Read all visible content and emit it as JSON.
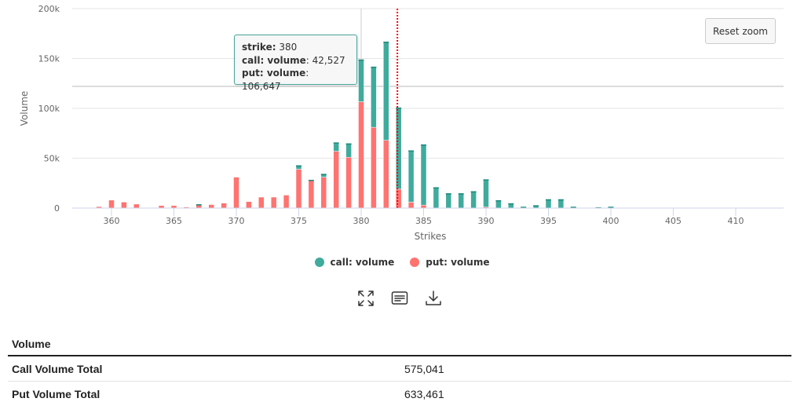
{
  "chart_data": {
    "type": "bar",
    "stacked": true,
    "title": "",
    "xlabel": "Strikes",
    "ylabel": "Volume",
    "xlim": [
      358,
      413
    ],
    "ylim": [
      0,
      200000
    ],
    "x_ticks": [
      "360",
      "365",
      "370",
      "375",
      "380",
      "385",
      "390",
      "395",
      "400",
      "405",
      "410"
    ],
    "x_tick_values": [
      360,
      365,
      370,
      375,
      380,
      385,
      390,
      395,
      400,
      405,
      410
    ],
    "y_ticks": [
      "0",
      "50k",
      "100k",
      "150k",
      "200k"
    ],
    "y_tick_values": [
      0,
      50000,
      100000,
      150000,
      200000
    ],
    "grid": true,
    "legend_position": "bottom-center",
    "x": [
      359,
      360,
      361,
      362,
      364,
      365,
      366,
      367,
      368,
      369,
      370,
      371,
      372,
      373,
      374,
      375,
      376,
      377,
      378,
      379,
      380,
      381,
      382,
      383,
      384,
      385,
      386,
      387,
      388,
      389,
      390,
      391,
      392,
      393,
      394,
      395,
      396,
      397,
      399,
      400
    ],
    "series": [
      {
        "name": "put: volume",
        "color": "#ff7370",
        "values": [
          1500,
          8000,
          6000,
          4000,
          2500,
          2500,
          1000,
          3000,
          3500,
          5000,
          31000,
          6500,
          11000,
          11000,
          13000,
          39000,
          28000,
          31000,
          57000,
          51000,
          106647,
          81000,
          68000,
          19000,
          6000,
          3000,
          0,
          0,
          0,
          0,
          1000,
          0,
          0,
          0,
          0,
          0,
          0,
          0,
          0,
          0
        ]
      },
      {
        "name": "call: volume",
        "color": "#3fab9d",
        "values": [
          0,
          0,
          0,
          0,
          0,
          0,
          0,
          1000,
          0,
          0,
          0,
          0,
          0,
          0,
          0,
          4000,
          500,
          3500,
          9000,
          14000,
          42527,
          61000,
          99000,
          82000,
          52000,
          61000,
          21000,
          15000,
          15000,
          17000,
          28000,
          8000,
          5000,
          1500,
          3000,
          9000,
          9000,
          1500,
          1000,
          1500
        ]
      }
    ],
    "reference_lines": {
      "current_price_strike": 382.9,
      "horizontal_line_value": 122000,
      "crosshair_strike": 380
    },
    "tooltip": {
      "strike_label": "strike:",
      "strike_value": "380",
      "call_label": "call: volume",
      "call_value": ": 42,527",
      "put_label": "put: volume",
      "put_value": ": 106,647"
    }
  },
  "controls": {
    "reset_zoom": "Reset zoom",
    "tools": [
      "fullscreen-icon",
      "data-table-icon",
      "download-icon"
    ]
  },
  "legend": [
    {
      "label": "call: volume",
      "color": "#3fab9d"
    },
    {
      "label": "put: volume",
      "color": "#ff7370"
    }
  ],
  "summary": {
    "header": "Volume",
    "rows": [
      {
        "label": "Call Volume Total",
        "value": "575,041"
      },
      {
        "label": "Put Volume Total",
        "value": "633,461"
      }
    ]
  }
}
